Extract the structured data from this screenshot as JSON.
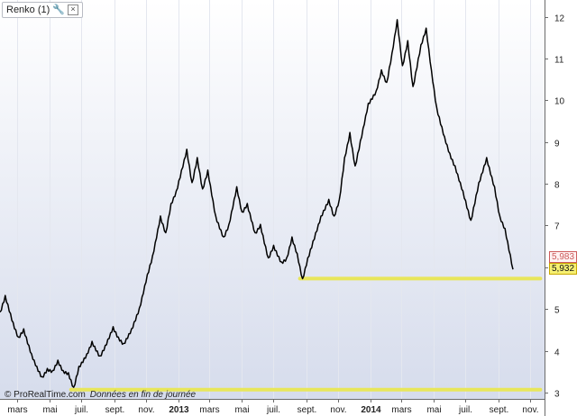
{
  "indicator": {
    "label": "Renko (1)",
    "wrench_icon": "wrench-icon",
    "close_icon": "close-icon"
  },
  "footer": {
    "brand": "© ProRealTime.com",
    "note": "Données en fin de journée"
  },
  "badges": {
    "upper": "5,983",
    "current": "5,932"
  },
  "colors": {
    "price_line": "#000000",
    "support_line": "#e8e65a",
    "badge_upper": "#cc5b5b",
    "badge_current": "#f6f072"
  },
  "chart_data": {
    "type": "line",
    "title": "",
    "xlabel": "",
    "ylabel": "",
    "ylim": [
      2.85,
      12.4
    ],
    "y_ticks": [
      3,
      4,
      5,
      6,
      7,
      8,
      9,
      10,
      11,
      12
    ],
    "y_tick_labels": [
      "3",
      "4",
      "5",
      "6",
      "7",
      "8",
      "9",
      "10",
      "11",
      "12"
    ],
    "x_range": [
      "2012-01-28",
      "2014-11-28"
    ],
    "x_ticks": [
      {
        "date": "2012-03-01",
        "label": "mars",
        "bold": false
      },
      {
        "date": "2012-05-01",
        "label": "mai",
        "bold": false
      },
      {
        "date": "2012-07-01",
        "label": "juil.",
        "bold": false
      },
      {
        "date": "2012-09-01",
        "label": "sept.",
        "bold": false
      },
      {
        "date": "2012-11-01",
        "label": "nov.",
        "bold": false
      },
      {
        "date": "2013-01-01",
        "label": "2013",
        "bold": true
      },
      {
        "date": "2013-03-01",
        "label": "mars",
        "bold": false
      },
      {
        "date": "2013-05-01",
        "label": "mai",
        "bold": false
      },
      {
        "date": "2013-07-01",
        "label": "juil.",
        "bold": false
      },
      {
        "date": "2013-09-01",
        "label": "sept.",
        "bold": false
      },
      {
        "date": "2013-11-01",
        "label": "nov.",
        "bold": false
      },
      {
        "date": "2014-01-01",
        "label": "2014",
        "bold": true
      },
      {
        "date": "2014-03-01",
        "label": "mars",
        "bold": false
      },
      {
        "date": "2014-05-01",
        "label": "mai",
        "bold": false
      },
      {
        "date": "2014-07-01",
        "label": "juil.",
        "bold": false
      },
      {
        "date": "2014-09-01",
        "label": "sept.",
        "bold": false
      },
      {
        "date": "2014-11-01",
        "label": "nov.",
        "bold": false
      }
    ],
    "grid": true,
    "series": [
      {
        "points": [
          [
            "2012-01-28",
            4.9
          ],
          [
            "2012-02-07",
            5.3
          ],
          [
            "2012-02-22",
            4.65
          ],
          [
            "2012-03-03",
            4.3
          ],
          [
            "2012-03-13",
            4.5
          ],
          [
            "2012-03-28",
            3.9
          ],
          [
            "2012-04-07",
            3.6
          ],
          [
            "2012-04-17",
            3.35
          ],
          [
            "2012-04-27",
            3.55
          ],
          [
            "2012-05-07",
            3.5
          ],
          [
            "2012-05-17",
            3.75
          ],
          [
            "2012-05-27",
            3.5
          ],
          [
            "2012-06-06",
            3.45
          ],
          [
            "2012-06-16",
            3.1
          ],
          [
            "2012-06-26",
            3.6
          ],
          [
            "2012-07-11",
            3.9
          ],
          [
            "2012-07-21",
            4.2
          ],
          [
            "2012-08-05",
            3.85
          ],
          [
            "2012-08-15",
            4.1
          ],
          [
            "2012-08-30",
            4.55
          ],
          [
            "2012-09-09",
            4.3
          ],
          [
            "2012-09-19",
            4.15
          ],
          [
            "2012-10-04",
            4.5
          ],
          [
            "2012-10-19",
            5.0
          ],
          [
            "2012-11-03",
            5.8
          ],
          [
            "2012-11-13",
            6.25
          ],
          [
            "2012-11-28",
            7.2
          ],
          [
            "2012-12-08",
            6.8
          ],
          [
            "2012-12-18",
            7.5
          ],
          [
            "2012-12-28",
            7.8
          ],
          [
            "2013-01-07",
            8.3
          ],
          [
            "2013-01-17",
            8.8
          ],
          [
            "2013-01-27",
            8.0
          ],
          [
            "2013-02-06",
            8.6
          ],
          [
            "2013-02-16",
            7.85
          ],
          [
            "2013-02-26",
            8.3
          ],
          [
            "2013-03-13",
            7.2
          ],
          [
            "2013-03-28",
            6.7
          ],
          [
            "2013-04-07",
            7.0
          ],
          [
            "2013-04-22",
            7.9
          ],
          [
            "2013-05-02",
            7.3
          ],
          [
            "2013-05-12",
            7.5
          ],
          [
            "2013-05-27",
            6.8
          ],
          [
            "2013-06-06",
            7.0
          ],
          [
            "2013-06-21",
            6.2
          ],
          [
            "2013-07-01",
            6.5
          ],
          [
            "2013-07-16",
            6.1
          ],
          [
            "2013-07-26",
            6.2
          ],
          [
            "2013-08-05",
            6.7
          ],
          [
            "2013-08-15",
            6.3
          ],
          [
            "2013-08-25",
            5.7
          ],
          [
            "2013-09-04",
            6.2
          ],
          [
            "2013-09-19",
            6.8
          ],
          [
            "2013-09-29",
            7.2
          ],
          [
            "2013-10-14",
            7.6
          ],
          [
            "2013-10-24",
            7.2
          ],
          [
            "2013-11-03",
            7.6
          ],
          [
            "2013-11-13",
            8.6
          ],
          [
            "2013-11-23",
            9.2
          ],
          [
            "2013-12-03",
            8.4
          ],
          [
            "2013-12-18",
            9.3
          ],
          [
            "2013-12-28",
            9.9
          ],
          [
            "2014-01-12",
            10.2
          ],
          [
            "2014-01-22",
            10.7
          ],
          [
            "2014-02-01",
            10.4
          ],
          [
            "2014-02-11",
            11.1
          ],
          [
            "2014-02-21",
            11.9
          ],
          [
            "2014-03-03",
            10.8
          ],
          [
            "2014-03-13",
            11.4
          ],
          [
            "2014-03-23",
            10.3
          ],
          [
            "2014-04-07",
            11.3
          ],
          [
            "2014-04-17",
            11.7
          ],
          [
            "2014-04-27",
            10.7
          ],
          [
            "2014-05-07",
            9.8
          ],
          [
            "2014-05-22",
            9.1
          ],
          [
            "2014-06-01",
            8.7
          ],
          [
            "2014-06-11",
            8.4
          ],
          [
            "2014-06-26",
            7.8
          ],
          [
            "2014-07-11",
            7.1
          ],
          [
            "2014-07-26",
            8.0
          ],
          [
            "2014-08-10",
            8.6
          ],
          [
            "2014-08-25",
            7.9
          ],
          [
            "2014-09-04",
            7.2
          ],
          [
            "2014-09-14",
            6.9
          ],
          [
            "2014-09-29",
            5.95
          ]
        ]
      }
    ],
    "annotations": [
      {
        "type": "hline",
        "y": 5.73,
        "x_start": "2013-08-20",
        "x_end": "2014-11-20"
      },
      {
        "type": "hline",
        "y": 3.07,
        "x_start": "2012-06-11",
        "x_end": "2014-11-20"
      }
    ]
  }
}
